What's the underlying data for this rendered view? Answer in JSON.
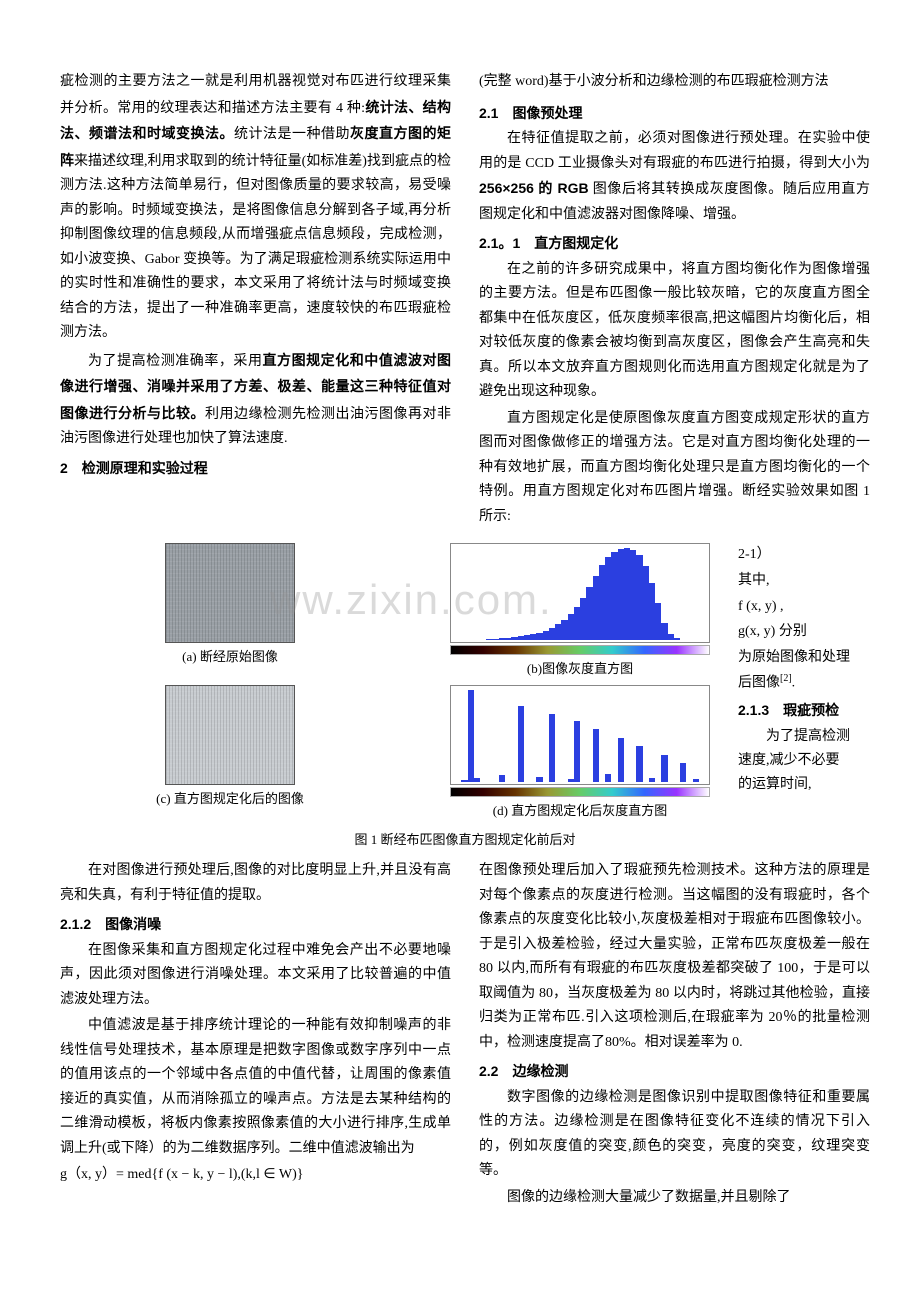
{
  "header_note": "(完整 word)基于小波分析和边缘检测的布匹瑕疵检测方法",
  "top": {
    "left": {
      "p1a": "疵检测的主要方法之一就是利用机器视觉对布匹进行纹理采集并分析。常用的纹理表达和描述方法主要有 4 种:",
      "p1b": "统计法、结构法、频谱法和时域变换法。",
      "p1c": "统计法是一种借助",
      "p1d": "灰度直方图的矩阵",
      "p1e": "来描述纹理,利用求取到的统计特征量(如标准差)找到疵点的检测方法.这种方法简单易行，但对图像质量的要求较高，易受噪声的影响。时频域变换法，是将图像信息分解到各子域,再分析抑制图像纹理的信息频段,从而增强疵点信息频段，完成检测，如小波变换、Gabor 变换等。为了满足瑕疵检测系统实际运用中的实时性和准确性的要求，本文采用了将统计法与时频域变换结合的方法，提出了一种准确率更高，速度较快的布匹瑕疵检测方法。",
      "p2a": "为了提高检测准确率，采用",
      "p2b": "直方图规定化和中值滤波对图像进行增强、消噪并采用了方差、极差、能量这三种特征值对图像进行分析与比较。",
      "p2c": "利用边缘检测先检测出油污图像再对非油污图像进行处理也加快了算法速度.",
      "h2": "2　检测原理和实验过程"
    },
    "right": {
      "h21": "2.1　图像预处理",
      "p1": "在特征值提取之前，必须对图像进行预处理。在实验中使用的是 CCD 工业摄像头对有瑕疵的布匹进行拍摄，得到大小为 ",
      "p1b": "256×256 的 RGB",
      "p1c": " 图像后将其转换成灰度图像。随后应用直方图规定化和中值滤波器对图像降噪、增强。",
      "h211": "2.1。1　直方图规定化",
      "p2": "在之前的许多研究成果中，将直方图均衡化作为图像增强的主要方法。但是布匹图像一般比较灰暗，它的灰度直方图全都集中在低灰度区，低灰度频率很高,把这幅图片均衡化后，相对较低灰度的像素会被均衡到高灰度区，图像会产生高亮和失真。所以本文放弃直方图规则化而选用直方图规定化就是为了避免出现这种现象。",
      "p3": "直方图规定化是使原图像灰度直方图变成规定形状的直方图而对图像做修正的增强方法。它是对直方图均衡化处理的一种有效地扩展，而直方图均衡化处理只是直方图均衡化的一个特例。用直方图规定化对布匹图片增强。断经实验效果如图 1 所示:"
    }
  },
  "figure": {
    "cap_a": "(a) 断经原始图像",
    "cap_b": "(b)图像灰度直方图",
    "cap_c": "(c) 直方图规定化后的图像",
    "cap_d": "(d) 直方图规定化后灰度直方图",
    "title": "图 1 断经布匹图像直方图规定化前后对",
    "hist_b": [
      0,
      0,
      0,
      0,
      0,
      1,
      1,
      2,
      2,
      3,
      4,
      5,
      6,
      8,
      10,
      13,
      17,
      22,
      28,
      36,
      46,
      58,
      70,
      82,
      90,
      96,
      99,
      100,
      98,
      92,
      80,
      62,
      40,
      18,
      6,
      2,
      0,
      0,
      0,
      0
    ],
    "hist_d": [
      0,
      2,
      88,
      4,
      0,
      0,
      0,
      6,
      0,
      0,
      72,
      0,
      0,
      5,
      0,
      65,
      0,
      0,
      3,
      58,
      0,
      0,
      50,
      0,
      7,
      0,
      42,
      0,
      0,
      34,
      0,
      4,
      0,
      26,
      0,
      0,
      18,
      0,
      3,
      0
    ],
    "bar_color": "#2b3fe0"
  },
  "side": {
    "s1": "2-1）",
    "s2": "其中,",
    "s3": "f (x, y) ,",
    "s4": "g(x, y) 分别",
    "s5": "为原始图像和处理后图像",
    "s5b": "[2]",
    "s5c": ".",
    "h213": "2.1.3　瑕疵预检",
    "s6": "为了提高检测速度,减少不必要的运算时间,"
  },
  "bottom": {
    "left": {
      "p1": "在对图像进行预处理后,图像的对比度明显上升,并且没有高亮和失真，有利于特征值的提取。",
      "h212": "2.1.2　图像消噪",
      "p2": "在图像采集和直方图规定化过程中难免会产出不必要地噪声，因此须对图像进行消噪处理。本文采用了比较普遍的中值滤波处理方法。",
      "p3": "中值滤波是基于排序统计理论的一种能有效抑制噪声的非线性信号处理技术，基本原理是把数字图像或数字序列中一点的值用该点的一个邻域中各点值的中值代替，让周围的像素值接近的真实值，从而消除孤立的噪声点。方法是去某种结构的二维滑动模板，将板内像素按照像素值的大小进行排序,生成单调上升(或下降）的为二维数据序列。二维中值滤波输出为",
      "eq": "g（x, y）= med{f (x − k, y − l),(k,l ∈ W)}"
    },
    "right": {
      "p1": "在图像预处理后加入了瑕疵预先检测技术。这种方法的原理是对每个像素点的灰度进行检测。当这幅图的没有瑕疵时，各个像素点的灰度变化比较小,灰度极差相对于瑕疵布匹图像较小。于是引入极差检验，经过大量实验，正常布匹灰度极差一般在 80 以内,而所有有瑕疵的布匹灰度极差都突破了 100，于是可以取阈值为 80，当灰度极差为 80 以内时，将跳过其他检验，直接归类为正常布匹.引入这项检测后,在瑕疵率为 20％的批量检测中，检测速度提高了80%。相对误差率为 0.",
      "h22": "2.2　边缘检测",
      "p2": "数字图像的边缘检测是图像识别中提取图像特征和重要属性的方法。边缘检测是在图像特征变化不连续的情况下引入的，例如灰度值的突变,颜色的突变，亮度的突变，纹理突变等。",
      "p3": "图像的边缘检测大量减少了数据量,并且剔除了"
    }
  }
}
